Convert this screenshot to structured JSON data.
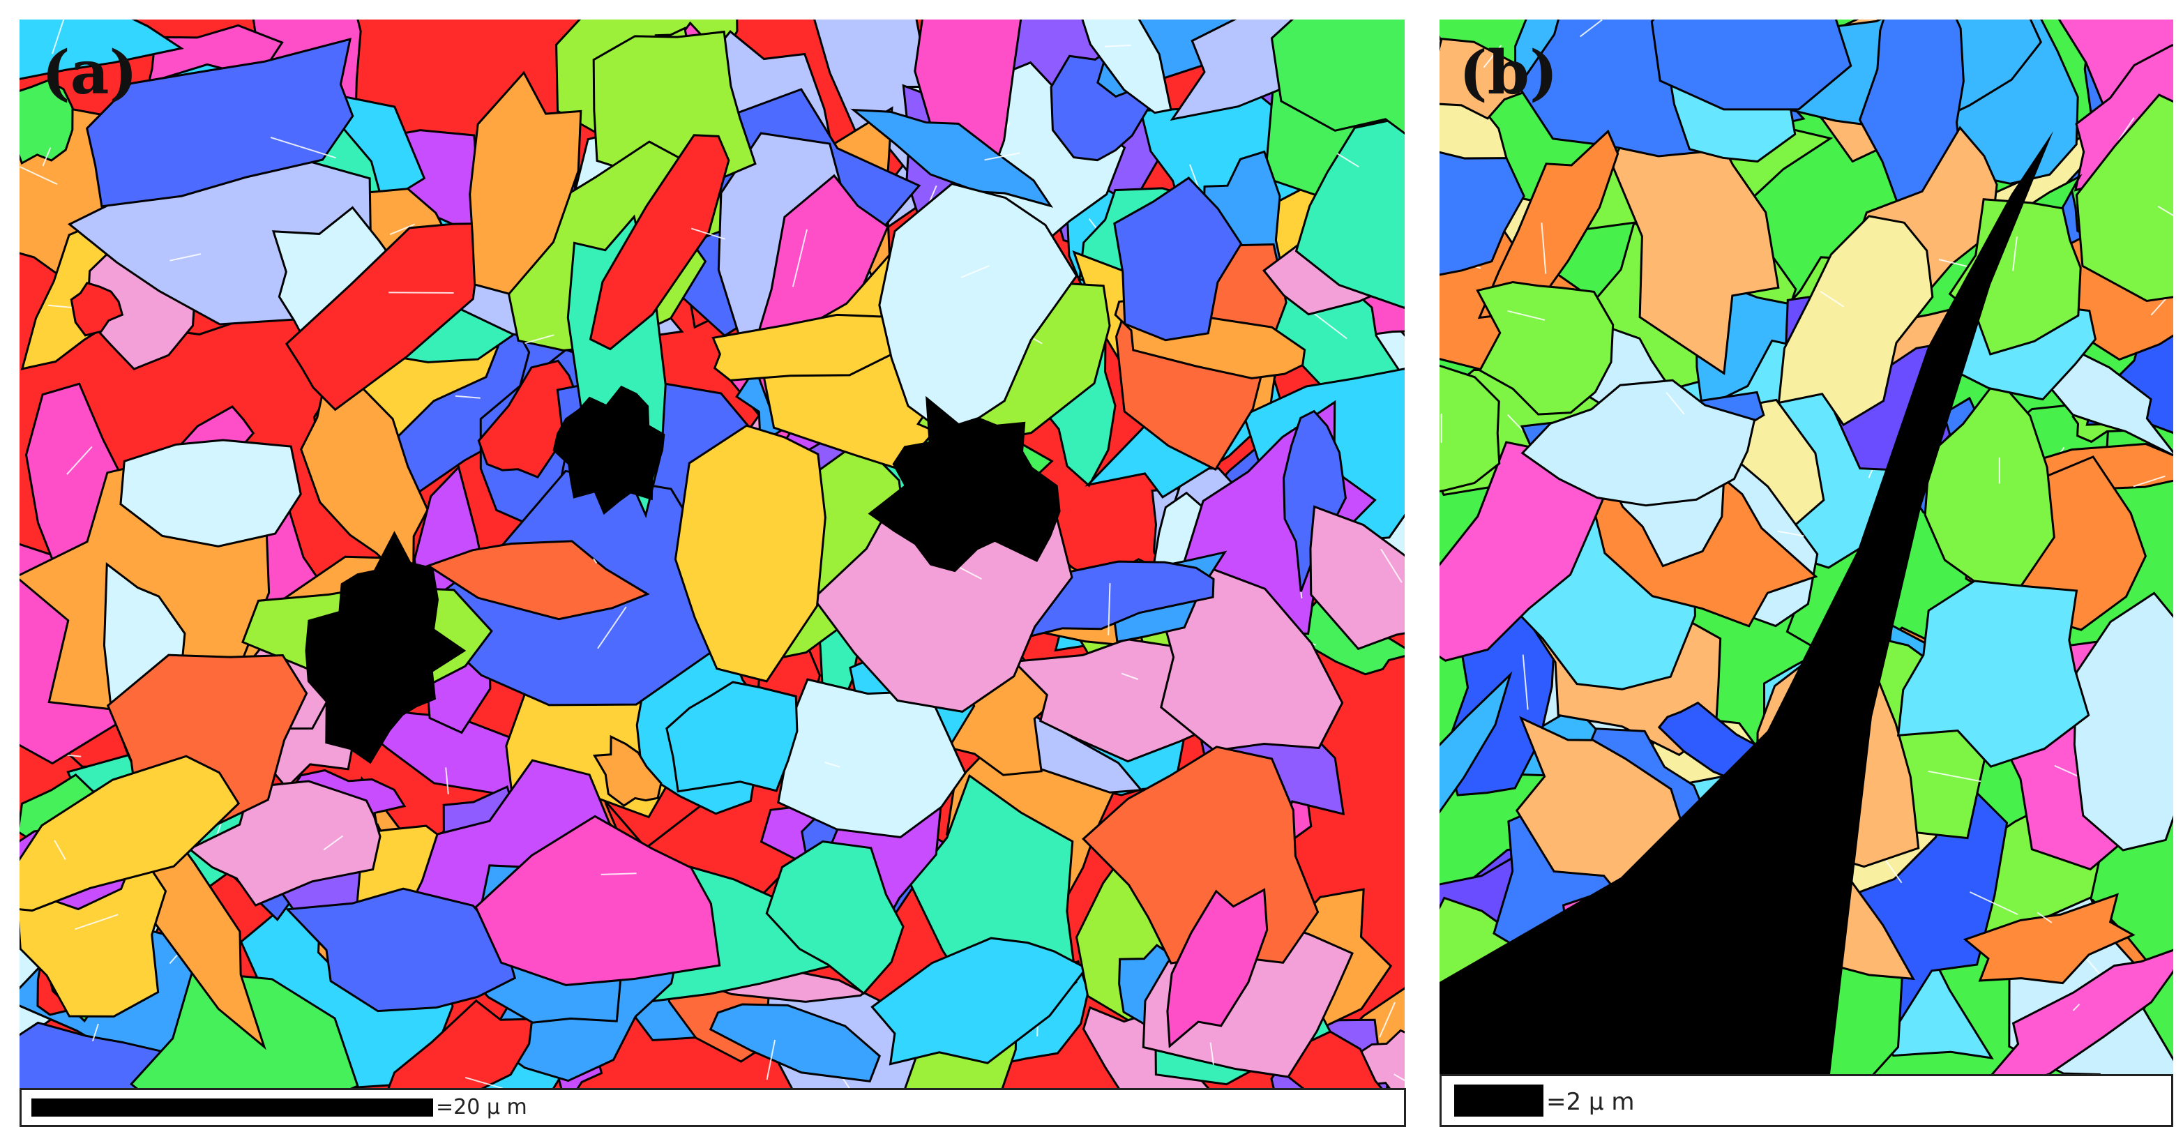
{
  "panels": [
    {
      "label": "(a)",
      "scale_text": "=20 μ m",
      "palette": [
        "#ff2a2a",
        "#ff6a3a",
        "#ffa640",
        "#ffd23a",
        "#ff4fc8",
        "#c84dff",
        "#8f5cff",
        "#4d6bff",
        "#3aa2ff",
        "#33d6ff",
        "#36f0b8",
        "#45f05a",
        "#9cf03a",
        "#f3a0d8",
        "#b6c4ff",
        "#d2f5ff"
      ]
    },
    {
      "label": "(b)",
      "scale_text": "=2 μ m",
      "palette": [
        "#47f04a",
        "#7ef545",
        "#3c7dff",
        "#2f5cff",
        "#3ab8ff",
        "#66e6ff",
        "#ff5ad2",
        "#ff8a3a",
        "#ffb870",
        "#f8f0a0",
        "#c8f0ff",
        "#6a4dff"
      ]
    }
  ],
  "colors": {
    "boundary_high": "#000000",
    "boundary_low": "#ffffff",
    "void": "#000000"
  }
}
